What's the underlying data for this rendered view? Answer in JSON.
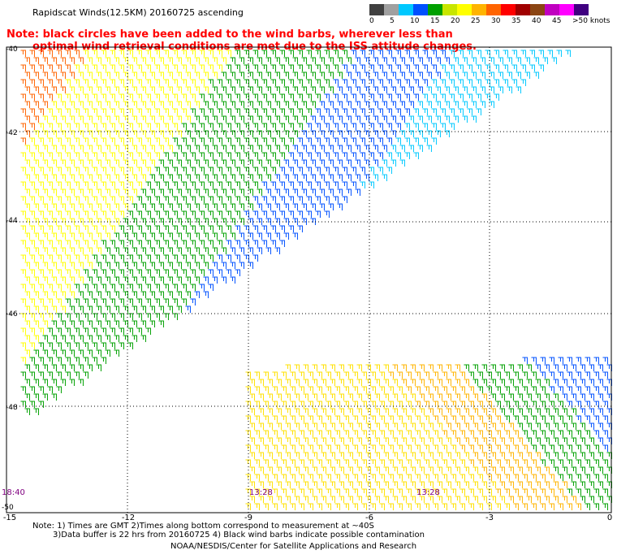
{
  "header": {
    "title": "Rapidscat Winds(12.5KM) 20160725 ascending",
    "note_line1": "Note: black circles have been added to the wind barbs, wherever less than",
    "note_line2": "optimal wind retrieval conditions are met due to the ISS attitude changes."
  },
  "legend": {
    "labels": [
      "0",
      "5",
      "10",
      "15",
      "20",
      "25",
      "30",
      "35",
      "40",
      "45",
      ">50 knots"
    ],
    "colors": [
      "#404040",
      "#a0a0a0",
      "#00c8ff",
      "#0050ff",
      "#00a000",
      "#c8e600",
      "#ffff00",
      "#ffb400",
      "#ff6400",
      "#ff0000",
      "#a00000",
      "#8b4513",
      "#c000c0",
      "#ff00ff",
      "#400080"
    ]
  },
  "axes": {
    "x_ticks": [
      "-15",
      "-12",
      "-9",
      "-6",
      "-3",
      "0"
    ],
    "y_ticks": [
      "-40",
      "-42",
      "-44",
      "-46",
      "-48",
      "-50"
    ]
  },
  "times": {
    "left": "18:40",
    "mid": "13:28",
    "right": "13:28"
  },
  "footer": {
    "line1": "Note: 1) Times are GMT 2)Times along bottom correspond to measurement at ~40S",
    "line2": "3)Data buffer is 22 hrs from 20160725 4) Black wind barbs indicate possible contamination",
    "credit": "NOAA/NESDIS/Center for Satellite Applications and Research"
  }
}
